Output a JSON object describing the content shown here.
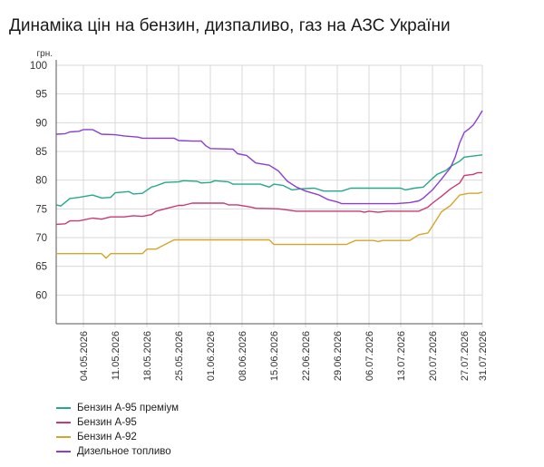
{
  "chart_data": {
    "type": "line",
    "title": "Динаміка цін на бензин, дизпаливо, газ на АЗС України",
    "ylabel": "грн.",
    "xlabel": "",
    "ylim": [
      55,
      100
    ],
    "yticks": [
      60,
      65,
      70,
      75,
      80,
      85,
      90,
      95,
      100
    ],
    "xlim": [
      "2026-04-28",
      "2026-07-31"
    ],
    "xticks": [
      "04.05.2026",
      "11.05.2026",
      "18.05.2026",
      "25.05.2026",
      "01.06.2026",
      "08.06.2026",
      "15.06.2026",
      "22.06.2026",
      "29.06.2026",
      "06.07.2026",
      "13.07.2026",
      "20.07.2026",
      "27.07.2026",
      "31.07.2026"
    ],
    "grid": true,
    "legend_position": "bottom-left",
    "series": [
      {
        "name": "Бензин А-95 преміум",
        "color": "#26a88b",
        "points": [
          [
            "2026-04-28",
            75.7
          ],
          [
            "2026-04-29",
            75.5
          ],
          [
            "2026-05-01",
            76.8
          ],
          [
            "2026-05-03",
            77.0
          ],
          [
            "2026-05-06",
            77.4
          ],
          [
            "2026-05-08",
            76.9
          ],
          [
            "2026-05-10",
            77.0
          ],
          [
            "2026-05-11",
            77.8
          ],
          [
            "2026-05-14",
            78.0
          ],
          [
            "2026-05-15",
            77.6
          ],
          [
            "2026-05-17",
            77.7
          ],
          [
            "2026-05-19",
            78.8
          ],
          [
            "2026-05-20",
            79.0
          ],
          [
            "2026-05-22",
            79.6
          ],
          [
            "2026-05-25",
            79.7
          ],
          [
            "2026-05-26",
            79.9
          ],
          [
            "2026-05-29",
            79.8
          ],
          [
            "2026-05-30",
            79.5
          ],
          [
            "2026-06-01",
            79.6
          ],
          [
            "2026-06-02",
            79.9
          ],
          [
            "2026-06-05",
            79.7
          ],
          [
            "2026-06-06",
            79.3
          ],
          [
            "2026-06-12",
            79.3
          ],
          [
            "2026-06-14",
            78.8
          ],
          [
            "2026-06-15",
            79.3
          ],
          [
            "2026-06-17",
            79.1
          ],
          [
            "2026-06-19",
            78.3
          ],
          [
            "2026-06-21",
            78.5
          ],
          [
            "2026-06-24",
            78.6
          ],
          [
            "2026-06-26",
            78.1
          ],
          [
            "2026-06-30",
            78.1
          ],
          [
            "2026-07-02",
            78.6
          ],
          [
            "2026-07-13",
            78.6
          ],
          [
            "2026-07-14",
            78.3
          ],
          [
            "2026-07-16",
            78.6
          ],
          [
            "2026-07-18",
            78.8
          ],
          [
            "2026-07-20",
            80.3
          ],
          [
            "2026-07-21",
            81.0
          ],
          [
            "2026-07-23",
            81.7
          ],
          [
            "2026-07-24",
            82.4
          ],
          [
            "2026-07-26",
            83.3
          ],
          [
            "2026-07-27",
            84.0
          ],
          [
            "2026-07-29",
            84.2
          ],
          [
            "2026-07-31",
            84.4
          ]
        ]
      },
      {
        "name": "Бензин А-95",
        "color": "#c83a75",
        "points": [
          [
            "2026-04-28",
            72.3
          ],
          [
            "2026-04-30",
            72.4
          ],
          [
            "2026-05-01",
            72.9
          ],
          [
            "2026-05-03",
            72.9
          ],
          [
            "2026-05-06",
            73.4
          ],
          [
            "2026-05-08",
            73.2
          ],
          [
            "2026-05-10",
            73.6
          ],
          [
            "2026-05-13",
            73.6
          ],
          [
            "2026-05-15",
            73.8
          ],
          [
            "2026-05-17",
            73.7
          ],
          [
            "2026-05-19",
            74.0
          ],
          [
            "2026-05-20",
            74.6
          ],
          [
            "2026-05-22",
            75.0
          ],
          [
            "2026-05-25",
            75.6
          ],
          [
            "2026-05-26",
            75.6
          ],
          [
            "2026-05-28",
            76.0
          ],
          [
            "2026-06-04",
            76.0
          ],
          [
            "2026-06-05",
            75.7
          ],
          [
            "2026-06-07",
            75.7
          ],
          [
            "2026-06-10",
            75.3
          ],
          [
            "2026-06-11",
            75.1
          ],
          [
            "2026-06-16",
            75.0
          ],
          [
            "2026-06-18",
            74.8
          ],
          [
            "2026-06-20",
            74.6
          ],
          [
            "2026-07-04",
            74.6
          ],
          [
            "2026-07-05",
            74.4
          ],
          [
            "2026-07-06",
            74.6
          ],
          [
            "2026-07-08",
            74.4
          ],
          [
            "2026-07-10",
            74.6
          ],
          [
            "2026-07-17",
            74.6
          ],
          [
            "2026-07-19",
            75.3
          ],
          [
            "2026-07-20",
            76.0
          ],
          [
            "2026-07-22",
            77.2
          ],
          [
            "2026-07-24",
            78.5
          ],
          [
            "2026-07-26",
            79.5
          ],
          [
            "2026-07-27",
            80.8
          ],
          [
            "2026-07-29",
            81.0
          ],
          [
            "2026-07-30",
            81.3
          ],
          [
            "2026-07-31",
            81.3
          ]
        ]
      },
      {
        "name": "Бензин А-92",
        "color": "#d4a62a",
        "points": [
          [
            "2026-04-28",
            67.2
          ],
          [
            "2026-05-08",
            67.2
          ],
          [
            "2026-05-09",
            66.4
          ],
          [
            "2026-05-10",
            67.2
          ],
          [
            "2026-05-17",
            67.2
          ],
          [
            "2026-05-18",
            68.0
          ],
          [
            "2026-05-20",
            68.0
          ],
          [
            "2026-05-22",
            68.8
          ],
          [
            "2026-05-24",
            69.6
          ],
          [
            "2026-06-14",
            69.6
          ],
          [
            "2026-06-15",
            68.8
          ],
          [
            "2026-07-01",
            68.8
          ],
          [
            "2026-07-03",
            69.5
          ],
          [
            "2026-07-07",
            69.5
          ],
          [
            "2026-07-08",
            69.3
          ],
          [
            "2026-07-09",
            69.5
          ],
          [
            "2026-07-15",
            69.5
          ],
          [
            "2026-07-17",
            70.5
          ],
          [
            "2026-07-19",
            70.8
          ],
          [
            "2026-07-20",
            72.0
          ],
          [
            "2026-07-22",
            74.5
          ],
          [
            "2026-07-24",
            75.6
          ],
          [
            "2026-07-26",
            77.4
          ],
          [
            "2026-07-28",
            77.7
          ],
          [
            "2026-07-30",
            77.7
          ],
          [
            "2026-07-31",
            77.9
          ]
        ]
      },
      {
        "name": "Дизельное топливо",
        "color": "#8a3fd1",
        "points": [
          [
            "2026-04-28",
            88.0
          ],
          [
            "2026-04-30",
            88.1
          ],
          [
            "2026-05-01",
            88.4
          ],
          [
            "2026-05-03",
            88.5
          ],
          [
            "2026-05-04",
            88.8
          ],
          [
            "2026-05-06",
            88.8
          ],
          [
            "2026-05-08",
            88.0
          ],
          [
            "2026-05-11",
            87.9
          ],
          [
            "2026-05-13",
            87.7
          ],
          [
            "2026-05-16",
            87.5
          ],
          [
            "2026-05-17",
            87.3
          ],
          [
            "2026-05-24",
            87.3
          ],
          [
            "2026-05-25",
            86.9
          ],
          [
            "2026-05-28",
            86.8
          ],
          [
            "2026-05-30",
            86.8
          ],
          [
            "2026-05-31",
            86.0
          ],
          [
            "2026-06-01",
            85.5
          ],
          [
            "2026-06-06",
            85.4
          ],
          [
            "2026-06-07",
            84.6
          ],
          [
            "2026-06-09",
            84.3
          ],
          [
            "2026-06-11",
            83.0
          ],
          [
            "2026-06-14",
            82.6
          ],
          [
            "2026-06-16",
            81.6
          ],
          [
            "2026-06-18",
            79.8
          ],
          [
            "2026-06-20",
            78.8
          ],
          [
            "2026-06-22",
            78.1
          ],
          [
            "2026-06-25",
            77.4
          ],
          [
            "2026-06-27",
            76.6
          ],
          [
            "2026-06-29",
            76.2
          ],
          [
            "2026-06-30",
            75.9
          ],
          [
            "2026-07-12",
            75.9
          ],
          [
            "2026-07-15",
            76.1
          ],
          [
            "2026-07-17",
            76.4
          ],
          [
            "2026-07-18",
            76.9
          ],
          [
            "2026-07-20",
            78.3
          ],
          [
            "2026-07-22",
            80.2
          ],
          [
            "2026-07-24",
            82.2
          ],
          [
            "2026-07-25",
            84.0
          ],
          [
            "2026-07-26",
            86.5
          ],
          [
            "2026-07-27",
            88.3
          ],
          [
            "2026-07-28",
            88.9
          ],
          [
            "2026-07-29",
            89.6
          ],
          [
            "2026-07-30",
            90.8
          ],
          [
            "2026-07-31",
            92.1
          ]
        ]
      }
    ]
  }
}
